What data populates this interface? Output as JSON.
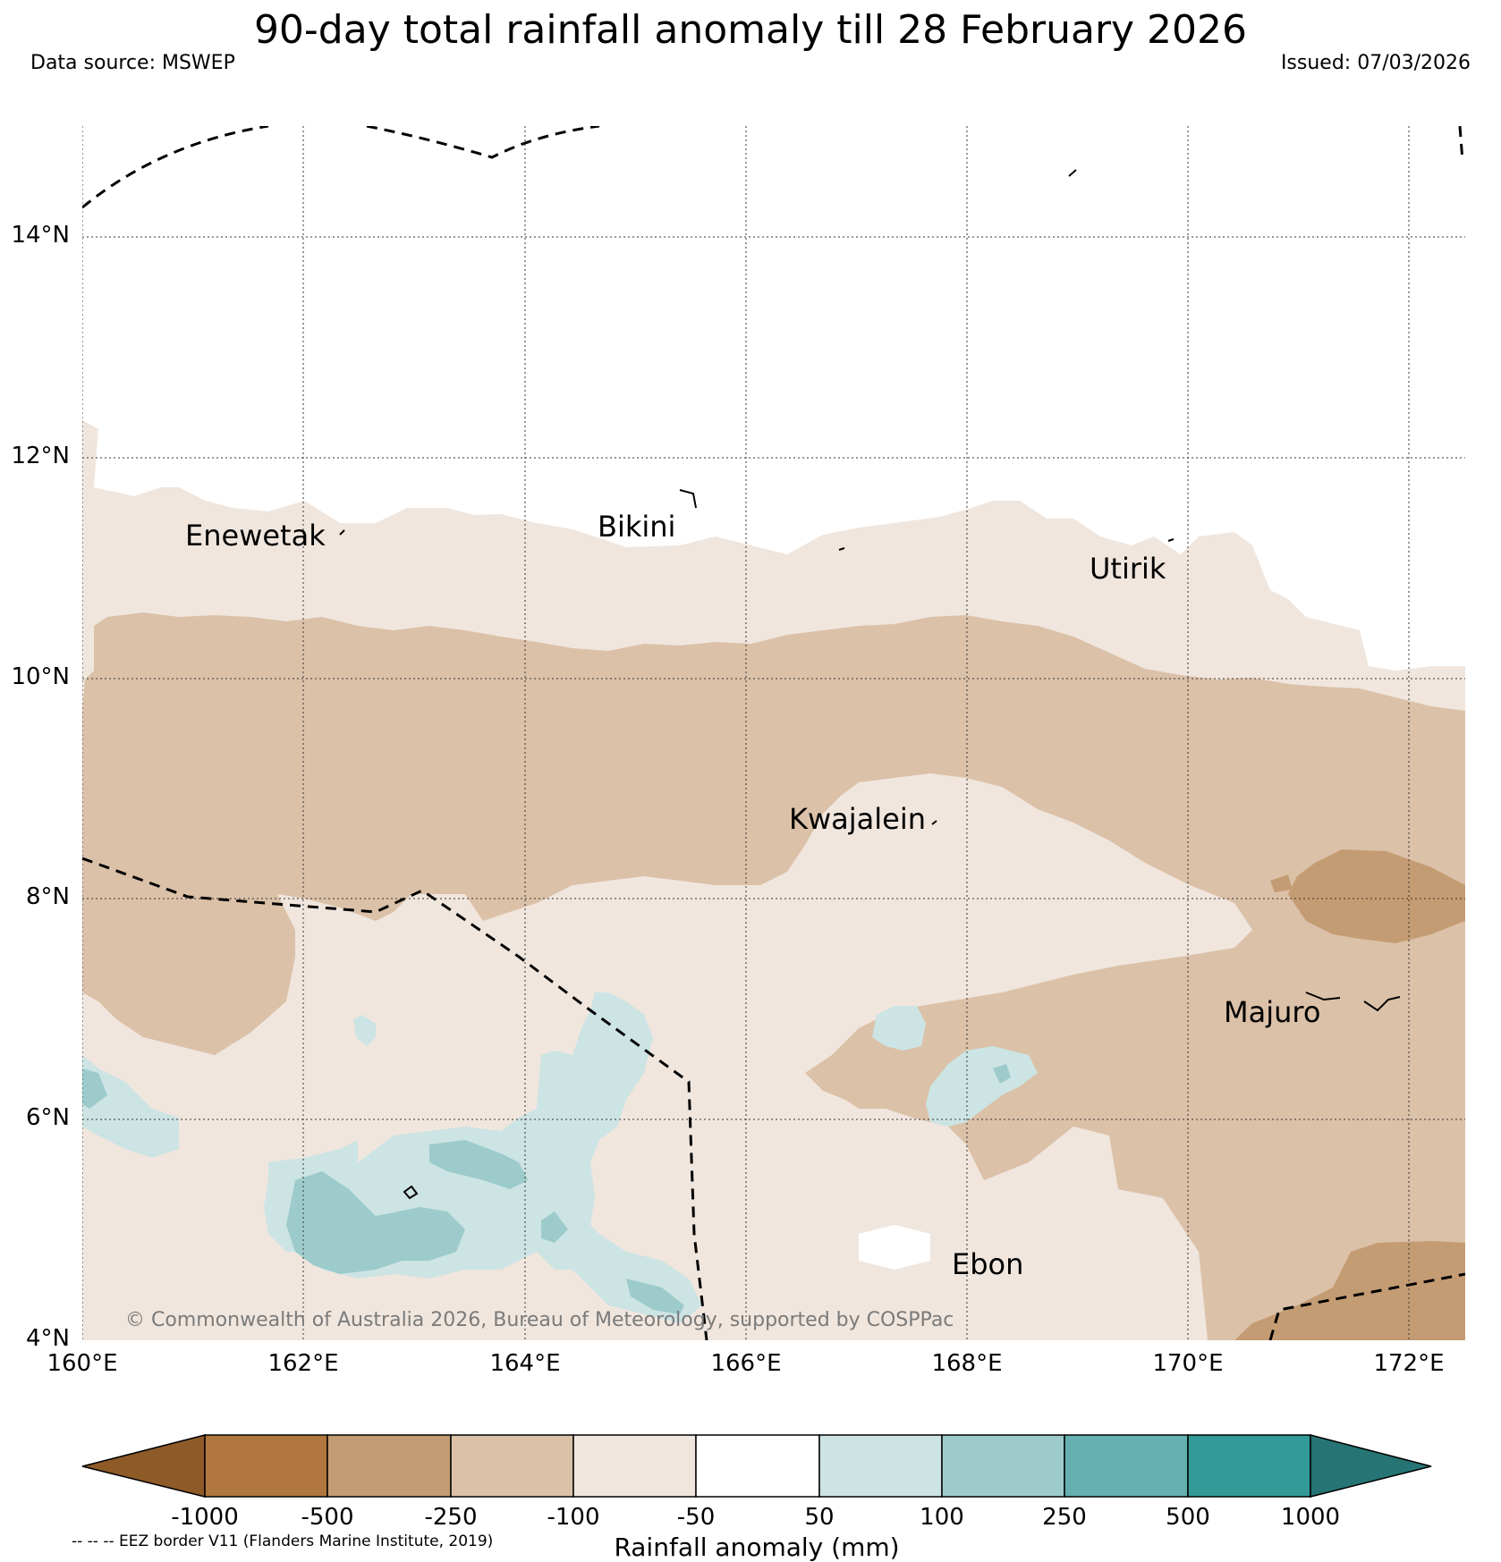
{
  "title": "90-day total rainfall anomaly till 28 February 2026",
  "data_source": "Data source: MSWEP",
  "issued": "Issued: 07/03/2026",
  "copyright": "© Commonwealth of Australia 2026, Bureau of Meteorology, supported by COSPPac",
  "eez_note": "-- -- -- EEZ border V11 (Flanders Marine Institute, 2019)",
  "map": {
    "lat_labels": [
      "14°N",
      "12°N",
      "10°N",
      "8°N",
      "6°N",
      "4°N"
    ],
    "lon_labels": [
      "160°E",
      "162°E",
      "164°E",
      "166°E",
      "168°E",
      "170°E",
      "172°E"
    ],
    "places": [
      "Enewetak",
      "Bikini",
      "Utirik",
      "Kwajalein",
      "Majuro",
      "Ebon"
    ]
  },
  "colorbar": {
    "title": "Rainfall anomaly (mm)",
    "ticks": [
      "-1000",
      "-500",
      "-250",
      "-100",
      "-50",
      "50",
      "100",
      "250",
      "500",
      "1000"
    ],
    "colors": [
      "#8e5a28",
      "#b0773f",
      "#c49c73",
      "#dbc1a8",
      "#f0e6de",
      "#ffffff",
      "#cce4e3",
      "#9dcbcb",
      "#65b1b1",
      "#339a97",
      "#267574"
    ]
  }
}
